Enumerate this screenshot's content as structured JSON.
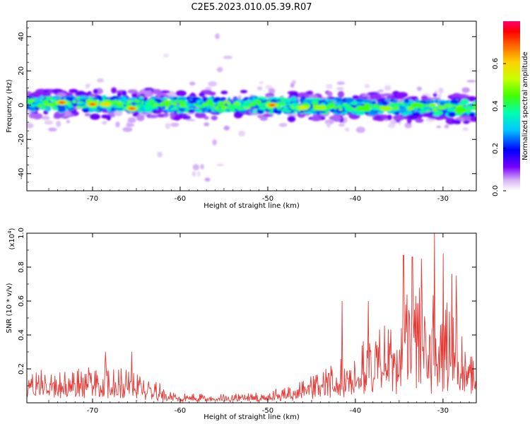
{
  "title": "C2E5.2023.010.05.39.R07",
  "colors": {
    "snr_line": "#e53935",
    "axis": "#000000"
  },
  "chart_data": [
    {
      "type": "heatmap",
      "xlabel": "Height of straight line (km)",
      "ylabel": "Frequency (Hz)",
      "xlim": [
        -77.5,
        -26.2
      ],
      "ylim": [
        -50,
        49
      ],
      "x_ticks": [
        -70,
        -60,
        -50,
        -40,
        -30
      ],
      "y_ticks": [
        -40,
        -20,
        0,
        20,
        40
      ],
      "band": {
        "center_hz_at": [
          [
            -77.5,
            1
          ],
          [
            -50,
            0
          ],
          [
            -26.2,
            -2
          ]
        ],
        "half_width_hz": 4
      },
      "hotspots": [
        {
          "x": -73.5,
          "y": 1.5,
          "value": 0.75
        },
        {
          "x": -70.0,
          "y": 0.5,
          "value": 0.72
        },
        {
          "x": -68.5,
          "y": 0.5,
          "value": 0.6
        },
        {
          "x": -65.5,
          "y": -2,
          "value": 0.7
        },
        {
          "x": -49.5,
          "y": 0,
          "value": 0.74
        },
        {
          "x": -46.0,
          "y": -1.5,
          "value": 0.55
        },
        {
          "x": -44.0,
          "y": -1.5,
          "value": 0.5
        },
        {
          "x": -39.0,
          "y": -2,
          "value": 0.45
        },
        {
          "x": -36.5,
          "y": -2,
          "value": 0.5
        },
        {
          "x": -33.0,
          "y": 0,
          "value": 0.45
        },
        {
          "x": -28.0,
          "y": -3,
          "value": 0.45
        }
      ],
      "colorbar": {
        "label": "Normalized spectral amplitude",
        "range": [
          0,
          0.8
        ],
        "ticks": [
          0.0,
          0.2,
          0.4,
          0.6
        ]
      }
    },
    {
      "type": "line",
      "xlabel": "Height of straight line (km)",
      "ylabel": "SNR (10 * v/v)",
      "y_multiplier_label": "(x10",
      "y_multiplier_exp": "4",
      "y_multiplier_close": ")",
      "xlim": [
        -77.5,
        -26.2
      ],
      "ylim": [
        0,
        1.0
      ],
      "x_ticks": [
        -70,
        -60,
        -50,
        -40,
        -30
      ],
      "y_ticks": [
        0.2,
        0.4,
        0.6,
        0.8,
        1.0
      ],
      "series": [
        {
          "envelope": [
            [
              -77.5,
              0.1
            ],
            [
              -76,
              0.14
            ],
            [
              -74,
              0.12
            ],
            [
              -72,
              0.13
            ],
            [
              -70,
              0.14
            ],
            [
              -68,
              0.14
            ],
            [
              -66,
              0.13
            ],
            [
              -64,
              0.11
            ],
            [
              -62,
              0.07
            ],
            [
              -60,
              0.04
            ],
            [
              -58,
              0.035
            ],
            [
              -55,
              0.035
            ],
            [
              -52,
              0.04
            ],
            [
              -50,
              0.05
            ],
            [
              -48,
              0.06
            ],
            [
              -46,
              0.09
            ],
            [
              -44,
              0.12
            ],
            [
              -42,
              0.16
            ],
            [
              -40,
              0.22
            ],
            [
              -38,
              0.27
            ],
            [
              -36,
              0.33
            ],
            [
              -34,
              0.42
            ],
            [
              -32,
              0.46
            ],
            [
              -30,
              0.42
            ],
            [
              -28,
              0.28
            ],
            [
              -26.2,
              0.14
            ]
          ],
          "peaks": [
            [
              -68.5,
              0.3
            ],
            [
              -65.5,
              0.3
            ],
            [
              -41.5,
              0.6
            ],
            [
              -38.5,
              0.6
            ],
            [
              -34.5,
              0.87
            ],
            [
              -33.5,
              0.86
            ],
            [
              -32.5,
              0.85
            ],
            [
              -31.0,
              1.0
            ],
            [
              -30.0,
              0.88
            ],
            [
              -29.0,
              0.76
            ],
            [
              -28.5,
              0.75
            ],
            [
              -27.5,
              0.3
            ]
          ]
        }
      ]
    }
  ]
}
